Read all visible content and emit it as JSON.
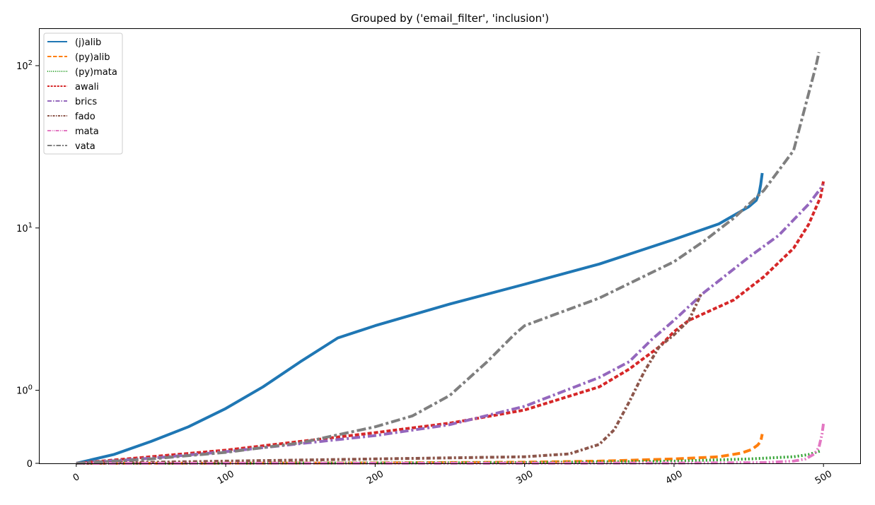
{
  "chart_data": {
    "type": "line",
    "title": "Grouped by ('email_filter', 'inclusion')",
    "xlabel": "",
    "ylabel": "",
    "xlim": [
      -25,
      525
    ],
    "ylim": [
      0,
      170
    ],
    "y_scale": "symlog",
    "grid": false,
    "legend_position": "top-left",
    "x_ticks": [
      0,
      100,
      200,
      300,
      400,
      500
    ],
    "x_tick_labels": [
      "0",
      "100",
      "200",
      "300",
      "400",
      "500"
    ],
    "y_ticks": [
      0,
      1,
      10,
      100
    ],
    "y_tick_labels": [
      {
        "base": "0",
        "exp": ""
      },
      {
        "base": "10",
        "exp": "0"
      },
      {
        "base": "10",
        "exp": "1"
      },
      {
        "base": "10",
        "exp": "2"
      }
    ],
    "series": [
      {
        "name": "(j)alib",
        "color": "#1f77b4",
        "dash": "solid",
        "points": [
          [
            0,
            0
          ],
          [
            25,
            0.12
          ],
          [
            50,
            0.3
          ],
          [
            75,
            0.5
          ],
          [
            100,
            0.75
          ],
          [
            125,
            1.05
          ],
          [
            150,
            1.5
          ],
          [
            175,
            2.1
          ],
          [
            200,
            2.5
          ],
          [
            250,
            3.4
          ],
          [
            300,
            4.5
          ],
          [
            350,
            6.0
          ],
          [
            400,
            8.5
          ],
          [
            430,
            10.6
          ],
          [
            450,
            13.5
          ],
          [
            455,
            14.8
          ],
          [
            457,
            16.5
          ],
          [
            458,
            18.5
          ],
          [
            459,
            21.8
          ]
        ]
      },
      {
        "name": "(py)alib",
        "color": "#ff7f0e",
        "dash": "dashed",
        "points": [
          [
            0,
            0
          ],
          [
            100,
            0.002
          ],
          [
            200,
            0.006
          ],
          [
            300,
            0.015
          ],
          [
            350,
            0.03
          ],
          [
            400,
            0.06
          ],
          [
            430,
            0.09
          ],
          [
            445,
            0.14
          ],
          [
            452,
            0.19
          ],
          [
            456,
            0.25
          ],
          [
            458,
            0.3
          ],
          [
            459,
            0.4
          ]
        ]
      },
      {
        "name": "(py)mata",
        "color": "#2ca02c",
        "dash": "dotted",
        "points": [
          [
            0,
            0
          ],
          [
            200,
            0.005
          ],
          [
            300,
            0.01
          ],
          [
            400,
            0.03
          ],
          [
            450,
            0.06
          ],
          [
            480,
            0.09
          ],
          [
            490,
            0.12
          ],
          [
            498,
            0.17
          ]
        ]
      },
      {
        "name": "awali",
        "color": "#d62728",
        "dash": "densedash",
        "points": [
          [
            0,
            0
          ],
          [
            50,
            0.09
          ],
          [
            100,
            0.18
          ],
          [
            150,
            0.3
          ],
          [
            200,
            0.42
          ],
          [
            250,
            0.55
          ],
          [
            300,
            0.73
          ],
          [
            350,
            1.05
          ],
          [
            370,
            1.35
          ],
          [
            390,
            1.85
          ],
          [
            400,
            2.3
          ],
          [
            410,
            2.7
          ],
          [
            440,
            3.6
          ],
          [
            460,
            5.0
          ],
          [
            480,
            7.5
          ],
          [
            490,
            10.5
          ],
          [
            498,
            15.5
          ],
          [
            500,
            19.5
          ]
        ]
      },
      {
        "name": "brics",
        "color": "#9467bd",
        "dash": "dashdot",
        "points": [
          [
            0,
            0
          ],
          [
            50,
            0.07
          ],
          [
            100,
            0.16
          ],
          [
            150,
            0.27
          ],
          [
            200,
            0.38
          ],
          [
            250,
            0.53
          ],
          [
            300,
            0.78
          ],
          [
            350,
            1.2
          ],
          [
            370,
            1.5
          ],
          [
            385,
            2.05
          ],
          [
            400,
            2.7
          ],
          [
            420,
            4.0
          ],
          [
            450,
            6.6
          ],
          [
            470,
            9.0
          ],
          [
            490,
            14.0
          ],
          [
            500,
            18.5
          ]
        ]
      },
      {
        "name": "fado",
        "color": "#8c564b",
        "dash": "densedashdot",
        "points": [
          [
            0,
            0
          ],
          [
            100,
            0.03
          ],
          [
            200,
            0.06
          ],
          [
            300,
            0.09
          ],
          [
            330,
            0.13
          ],
          [
            350,
            0.26
          ],
          [
            360,
            0.46
          ],
          [
            370,
            0.84
          ],
          [
            380,
            1.3
          ],
          [
            390,
            1.85
          ],
          [
            400,
            2.2
          ],
          [
            410,
            2.7
          ],
          [
            418,
            3.9
          ]
        ]
      },
      {
        "name": "mata",
        "color": "#e377c2",
        "dash": "dashdotdot",
        "points": [
          [
            0,
            0
          ],
          [
            300,
            0.002
          ],
          [
            400,
            0.004
          ],
          [
            460,
            0.01
          ],
          [
            480,
            0.03
          ],
          [
            488,
            0.06
          ],
          [
            494,
            0.13
          ],
          [
            497,
            0.22
          ],
          [
            499,
            0.4
          ],
          [
            500,
            0.55
          ]
        ]
      },
      {
        "name": "vata",
        "color": "#7f7f7f",
        "dash": "longdashdot",
        "points": [
          [
            0,
            0
          ],
          [
            50,
            0.06
          ],
          [
            100,
            0.15
          ],
          [
            150,
            0.28
          ],
          [
            200,
            0.5
          ],
          [
            225,
            0.65
          ],
          [
            250,
            0.93
          ],
          [
            275,
            1.5
          ],
          [
            293,
            2.2
          ],
          [
            300,
            2.5
          ],
          [
            350,
            3.7
          ],
          [
            400,
            6.2
          ],
          [
            420,
            8.3
          ],
          [
            440,
            11.5
          ],
          [
            460,
            17.0
          ],
          [
            480,
            30.0
          ],
          [
            495,
            100.0
          ],
          [
            497,
            121.0
          ]
        ]
      }
    ]
  }
}
